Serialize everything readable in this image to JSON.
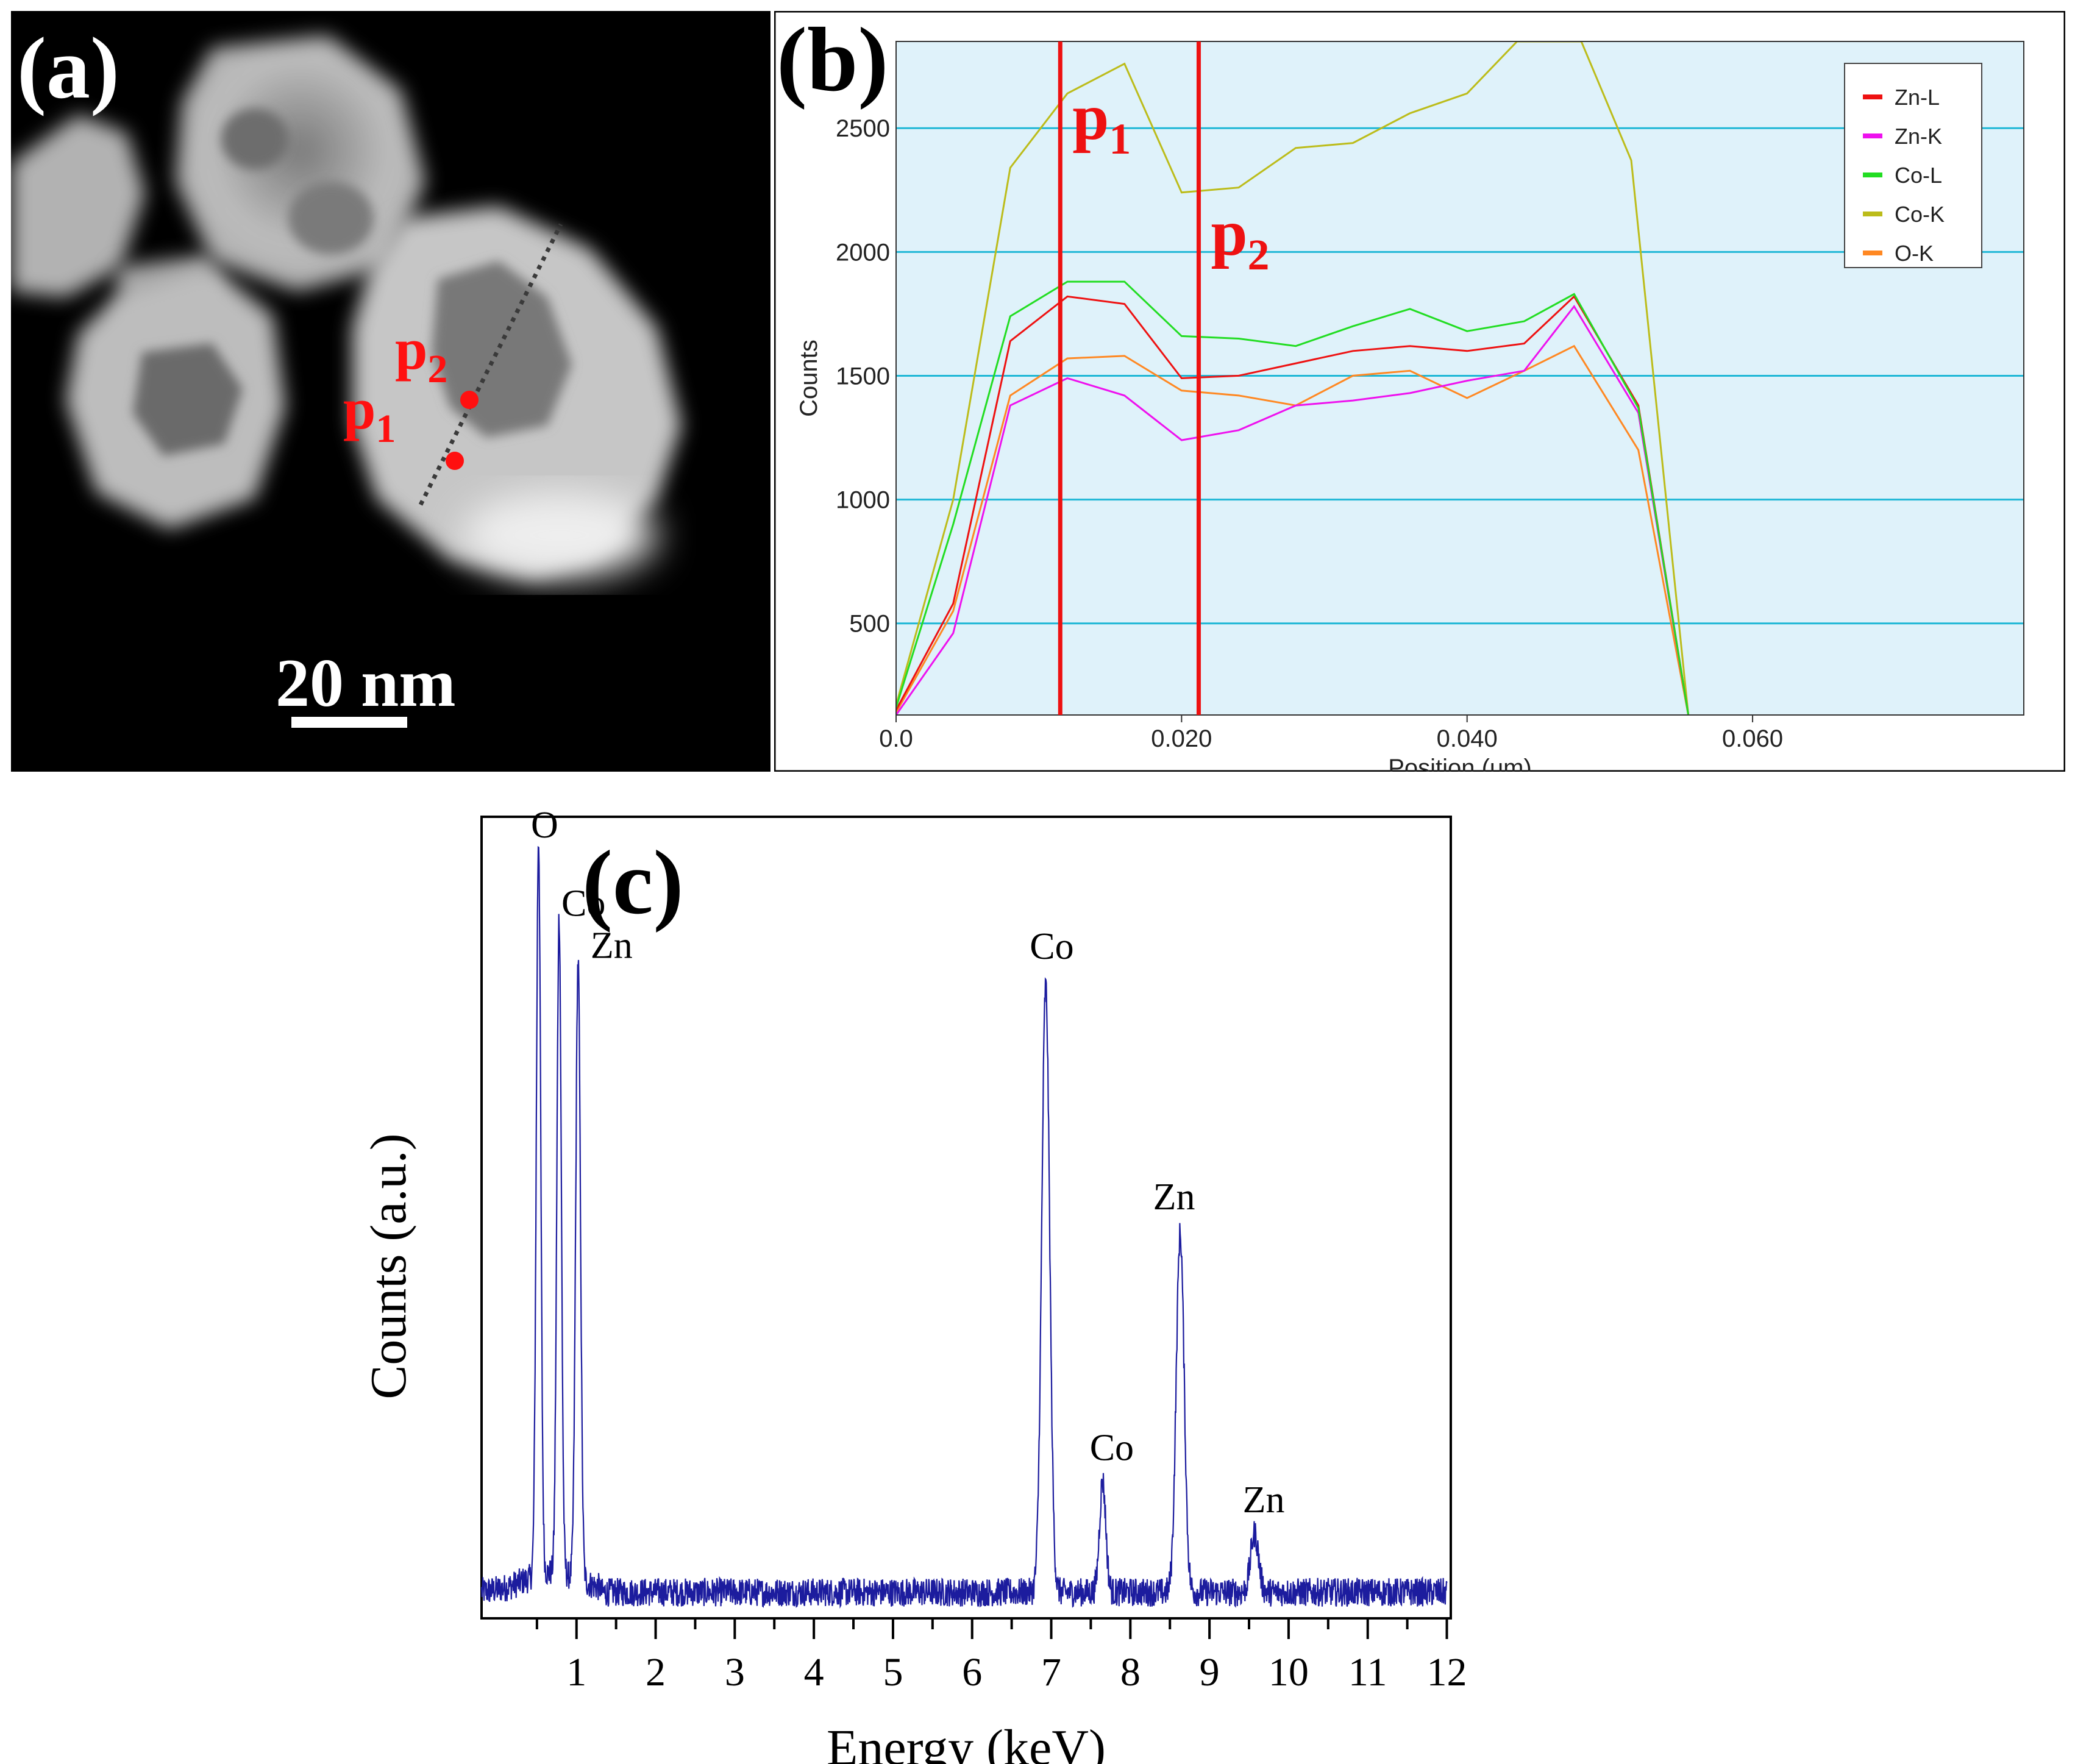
{
  "panel_a": {
    "label": "(a)",
    "scale_bar": "20 nm",
    "markers": [
      {
        "name": "p",
        "sub": "1"
      },
      {
        "name": "p",
        "sub": "2"
      }
    ],
    "colors": {
      "marker": "#ff1010",
      "background": "#000000"
    }
  },
  "chart_data": [
    {
      "type": "line",
      "label": "(b)",
      "xlabel": "Position (um)",
      "ylabel": "Counts",
      "xlim": [
        0.0,
        0.079
      ],
      "ylim": [
        130,
        2850
      ],
      "xticks": [
        0.0,
        0.02,
        0.04,
        0.06
      ],
      "xtick_labels": [
        "0.0",
        "0.020",
        "0.040",
        "0.060"
      ],
      "yticks": [
        500,
        1000,
        1500,
        2000,
        2500
      ],
      "ytick_labels": [
        "500",
        "1000",
        "1500",
        "2000",
        "2500"
      ],
      "grid": true,
      "legend_position": "top-right",
      "background_color": "#dff2fa",
      "gridline_color": "#1eb7d6",
      "markers": [
        {
          "x": 0.0115,
          "name": "p",
          "sub": "1"
        },
        {
          "x": 0.0212,
          "name": "p",
          "sub": "2"
        }
      ],
      "marker_color": "#ee1111",
      "series": [
        {
          "name": "Zn-L",
          "color": "#ee1111",
          "x": [
            0.0,
            0.004,
            0.008,
            0.012,
            0.016,
            0.02,
            0.024,
            0.028,
            0.032,
            0.036,
            0.04,
            0.044,
            0.0475,
            0.052,
            0.0555
          ],
          "y": [
            150,
            580,
            1640,
            1820,
            1790,
            1490,
            1500,
            1550,
            1600,
            1620,
            1600,
            1630,
            1820,
            1380,
            130
          ]
        },
        {
          "name": "Zn-K",
          "color": "#ee11ee",
          "x": [
            0.0,
            0.004,
            0.008,
            0.012,
            0.016,
            0.02,
            0.024,
            0.028,
            0.032,
            0.036,
            0.04,
            0.044,
            0.0475,
            0.052,
            0.0555
          ],
          "y": [
            130,
            460,
            1380,
            1490,
            1420,
            1240,
            1280,
            1380,
            1400,
            1430,
            1480,
            1520,
            1780,
            1350,
            130
          ]
        },
        {
          "name": "Co-L",
          "color": "#22dd22",
          "x": [
            0.0,
            0.004,
            0.008,
            0.012,
            0.016,
            0.02,
            0.024,
            0.028,
            0.032,
            0.036,
            0.04,
            0.044,
            0.0475,
            0.052,
            0.0555
          ],
          "y": [
            160,
            900,
            1740,
            1880,
            1880,
            1660,
            1650,
            1620,
            1700,
            1770,
            1680,
            1720,
            1830,
            1370,
            130
          ]
        },
        {
          "name": "Co-K",
          "color": "#bcbc1a",
          "x": [
            0.0,
            0.004,
            0.008,
            0.012,
            0.016,
            0.02,
            0.024,
            0.028,
            0.032,
            0.036,
            0.04,
            0.0435,
            0.048,
            0.0515,
            0.0555
          ],
          "y": [
            170,
            1000,
            2340,
            2640,
            2760,
            2240,
            2260,
            2420,
            2440,
            2560,
            2640,
            2850,
            2850,
            2370,
            130
          ]
        },
        {
          "name": "O-K",
          "color": "#ff8822",
          "x": [
            0.0,
            0.004,
            0.008,
            0.012,
            0.016,
            0.02,
            0.024,
            0.028,
            0.032,
            0.036,
            0.04,
            0.044,
            0.0475,
            0.052,
            0.0555
          ],
          "y": [
            140,
            550,
            1420,
            1570,
            1580,
            1440,
            1420,
            1380,
            1500,
            1520,
            1410,
            1520,
            1620,
            1200,
            130
          ]
        }
      ]
    },
    {
      "type": "line",
      "label": "(c)",
      "xlabel": "Energy (keV)",
      "ylabel": "Counts (a.u.)",
      "xlim": [
        -0.2,
        12.05
      ],
      "ylim": [
        -0.03,
        1.2
      ],
      "xticks": [
        1,
        2,
        3,
        4,
        5,
        6,
        7,
        8,
        9,
        10,
        11,
        12
      ],
      "xtick_labels": [
        "1",
        "2",
        "3",
        "4",
        "5",
        "6",
        "7",
        "8",
        "9",
        "10",
        "11",
        "12"
      ],
      "grid": false,
      "series_color": "#1c1c9e",
      "baseline": 0.01,
      "noise": 0.022,
      "peaks": [
        {
          "energy": 0.52,
          "height": 1.13,
          "width": 0.028
        },
        {
          "energy": 0.78,
          "height": 1.01,
          "width": 0.028
        },
        {
          "energy": 1.02,
          "height": 0.95,
          "width": 0.03
        },
        {
          "energy": 6.93,
          "height": 0.93,
          "width": 0.05
        },
        {
          "energy": 7.65,
          "height": 0.17,
          "width": 0.04
        },
        {
          "energy": 8.63,
          "height": 0.55,
          "width": 0.05
        },
        {
          "energy": 9.57,
          "height": 0.09,
          "width": 0.05
        }
      ],
      "annotations": [
        {
          "text": "O",
          "energy": 0.52
        },
        {
          "text": "Co",
          "energy": 0.78
        },
        {
          "text": "Zn",
          "energy": 1.02
        },
        {
          "text": "Co",
          "energy": 6.93
        },
        {
          "text": "Co",
          "energy": 7.65
        },
        {
          "text": "Zn",
          "energy": 8.63
        },
        {
          "text": "Zn",
          "energy": 9.57
        }
      ]
    }
  ]
}
